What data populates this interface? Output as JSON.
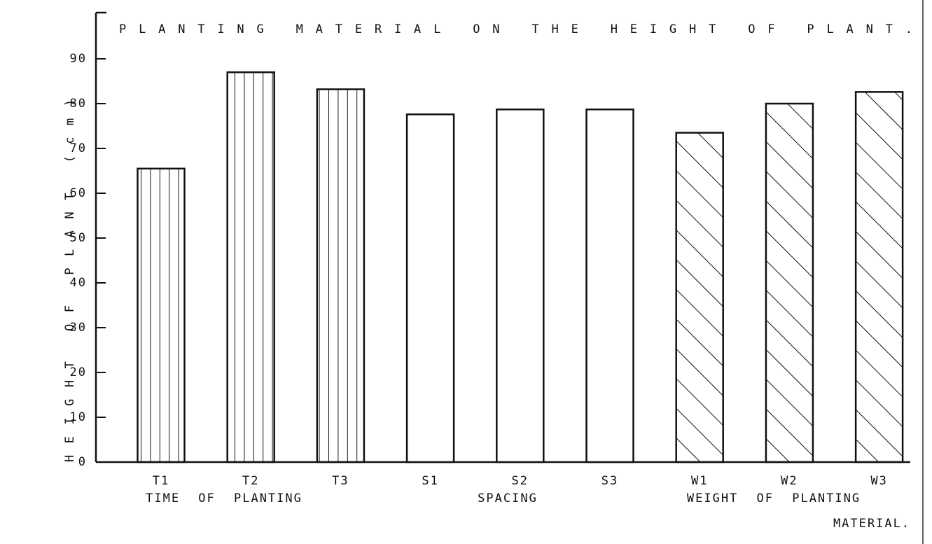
{
  "chart_data": {
    "type": "bar",
    "title": "PLANTING MATERIAL ON THE HEIGHT OF PLANT.",
    "y_label": "HEIGHT OF PLANT (cm)",
    "ylim": [
      0,
      100
    ],
    "yticks": [
      0,
      10,
      20,
      30,
      40,
      50,
      60,
      70,
      80,
      90
    ],
    "groups": [
      {
        "label": [
          "TIME OF PLANTING"
        ],
        "pattern": "vertical",
        "categories": [
          "T1",
          "T2",
          "T3"
        ],
        "values": [
          65.5,
          87,
          83.2
        ]
      },
      {
        "label": [
          "SPACING"
        ],
        "pattern": "none",
        "categories": [
          "S1",
          "S2",
          "S3"
        ],
        "values": [
          77.6,
          78.7,
          78.7
        ]
      },
      {
        "label": [
          "WEIGHT OF PLANTING",
          "MATERIAL."
        ],
        "pattern": "diagonal",
        "categories": [
          "W1",
          "W2",
          "W3"
        ],
        "values": [
          73.5,
          80,
          82.6
        ]
      }
    ]
  }
}
